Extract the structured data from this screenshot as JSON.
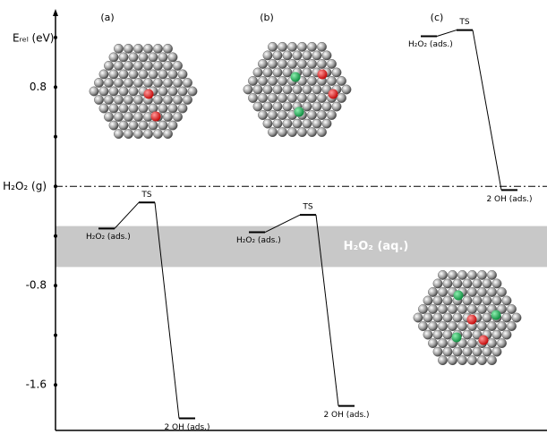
{
  "chart_data": {
    "type": "profile",
    "ylabel": "Eᵣₑₗ (eV)",
    "ylim": [
      -1.96,
      1.43
    ],
    "yticks": [
      0.8,
      {
        "value": 0,
        "label": "H₂O₂ (g)"
      },
      -0.8,
      -1.6
    ],
    "yticks_minor": [
      1.2,
      0.4,
      -0.4,
      -1.2
    ],
    "band": {
      "range": [
        -0.65,
        -0.32
      ],
      "label": "H₂O₂ (aq.)",
      "color": "#c8c8c8"
    },
    "color": "#000000",
    "series": [
      {
        "name": "(a)",
        "values": [
          -0.34,
          -0.13,
          -1.87
        ],
        "labels": [
          "H₂O₂ (ads.)",
          "TS",
          "2 OH (ads.)"
        ]
      },
      {
        "name": "(b)",
        "values": [
          -0.37,
          -0.23,
          -1.77
        ],
        "labels": [
          "H₂O₂ (ads.)",
          "TS",
          "2 OH (ads.)"
        ]
      },
      {
        "name": "(c)",
        "values": [
          1.21,
          1.26,
          -0.03
        ],
        "labels": [
          "H₂O₂ (ads.)",
          "TS",
          "2 OH (ads.)"
        ]
      }
    ]
  }
}
